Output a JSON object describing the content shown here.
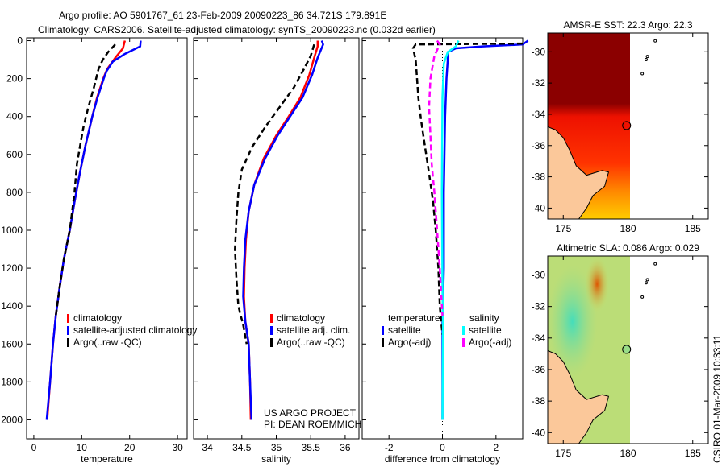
{
  "title_line1": "Argo profile: AO 5901767_61 23-Feb-2009 20090223_86 34.721S 179.891E",
  "title_line2": "Climatology: CARS2006. Satellite-adjusted climatology: synTS_20090223.nc (0.032d earlier)",
  "side_label": "CSIRO 01-Mar-2009 10:33:11",
  "project_label_1": "US ARGO PROJECT",
  "project_label_2": "PI: DEAN ROEMMICH",
  "colors": {
    "climatology": "#ff0000",
    "satellite_temp": "#0000ff",
    "argo": "#000000",
    "satellite_sal": "#00ffff",
    "argo_sal": "#ff00ff"
  },
  "chart_data": [
    {
      "type": "line",
      "name": "temperature",
      "xlabel": "temperature",
      "ylabel": "",
      "xlim": [
        -1.5,
        32
      ],
      "ylim": [
        2100,
        -15
      ],
      "xticks": [
        0,
        10,
        20,
        30
      ],
      "yticks": [
        0,
        200,
        400,
        600,
        800,
        1000,
        1200,
        1400,
        1600,
        1800,
        2000
      ],
      "legend": [
        "climatology",
        "satellite-adjusted climatology",
        "Argo(..raw -QC)"
      ],
      "series": [
        {
          "name": "climatology",
          "color": "#ff0000",
          "dash": false,
          "points": [
            [
              19,
              0
            ],
            [
              18.6,
              40
            ],
            [
              17,
              90
            ],
            [
              15.3,
              150
            ],
            [
              14.5,
              200
            ],
            [
              13.2,
              300
            ],
            [
              12.2,
              400
            ],
            [
              10.8,
              550
            ],
            [
              9.6,
              700
            ],
            [
              8.5,
              850
            ],
            [
              7.5,
              1000
            ],
            [
              6.3,
              1150
            ],
            [
              5.4,
              1300
            ],
            [
              4.6,
              1450
            ],
            [
              4,
              1600
            ],
            [
              3.4,
              1800
            ],
            [
              2.8,
              2000
            ]
          ]
        },
        {
          "name": "satellite-adjusted climatology",
          "color": "#0000ff",
          "dash": false,
          "points": [
            [
              22.3,
              0
            ],
            [
              22.2,
              30
            ],
            [
              19,
              70
            ],
            [
              16.5,
              110
            ],
            [
              15.2,
              160
            ],
            [
              14.6,
              200
            ],
            [
              13.3,
              300
            ],
            [
              12.2,
              400
            ],
            [
              10.8,
              550
            ],
            [
              9.6,
              700
            ],
            [
              8.5,
              850
            ],
            [
              7.5,
              1000
            ],
            [
              6.3,
              1150
            ],
            [
              5.4,
              1300
            ],
            [
              4.6,
              1450
            ],
            [
              4,
              1600
            ],
            [
              3.4,
              1800
            ],
            [
              2.7,
              2000
            ]
          ]
        },
        {
          "name": "Argo(..raw -QC)",
          "color": "#000000",
          "dash": true,
          "points": [
            [
              17,
              20
            ],
            [
              15.5,
              60
            ],
            [
              14.4,
              100
            ],
            [
              13.5,
              150
            ],
            [
              12.5,
              250
            ],
            [
              11.4,
              350
            ],
            [
              10.4,
              450
            ],
            [
              9.7,
              550
            ],
            [
              9,
              650
            ],
            [
              8.5,
              800
            ],
            [
              7.5,
              1000
            ],
            [
              6.3,
              1150
            ],
            [
              5.4,
              1300
            ],
            [
              4.6,
              1450
            ]
          ]
        }
      ]
    },
    {
      "type": "line",
      "name": "salinity",
      "xlabel": "salinity",
      "ylabel": "",
      "xlim": [
        33.8,
        36.2
      ],
      "ylim": [
        2100,
        -15
      ],
      "xticks": [
        34,
        34.5,
        35,
        35.5,
        36
      ],
      "legend": [
        "climatology",
        "satellite adj. clim.",
        "Argo(..raw -QC)"
      ],
      "series": [
        {
          "name": "climatology",
          "color": "#ff0000",
          "dash": false,
          "points": [
            [
              35.6,
              0
            ],
            [
              35.6,
              30
            ],
            [
              35.55,
              90
            ],
            [
              35.48,
              180
            ],
            [
              35.35,
              300
            ],
            [
              35.18,
              400
            ],
            [
              35.0,
              500
            ],
            [
              34.82,
              620
            ],
            [
              34.68,
              760
            ],
            [
              34.6,
              900
            ],
            [
              34.56,
              1050
            ],
            [
              34.54,
              1200
            ],
            [
              34.53,
              1350
            ],
            [
              34.55,
              1480
            ],
            [
              34.6,
              1600
            ],
            [
              34.62,
              1800
            ],
            [
              34.63,
              2000
            ]
          ]
        },
        {
          "name": "satellite adj. clim.",
          "color": "#0000ff",
          "dash": false,
          "points": [
            [
              35.66,
              0
            ],
            [
              35.68,
              20
            ],
            [
              35.6,
              90
            ],
            [
              35.52,
              180
            ],
            [
              35.38,
              300
            ],
            [
              35.2,
              400
            ],
            [
              35.02,
              500
            ],
            [
              34.84,
              620
            ],
            [
              34.68,
              760
            ],
            [
              34.6,
              900
            ],
            [
              34.55,
              1050
            ],
            [
              34.53,
              1200
            ],
            [
              34.52,
              1350
            ],
            [
              34.55,
              1480
            ],
            [
              34.6,
              1600
            ],
            [
              34.62,
              1800
            ],
            [
              34.64,
              2000
            ]
          ]
        },
        {
          "name": "Argo(..raw -QC)",
          "color": "#000000",
          "dash": true,
          "points": [
            [
              35.55,
              20
            ],
            [
              35.5,
              80
            ],
            [
              35.4,
              150
            ],
            [
              35.25,
              250
            ],
            [
              35.05,
              350
            ],
            [
              34.85,
              450
            ],
            [
              34.65,
              560
            ],
            [
              34.5,
              680
            ],
            [
              34.45,
              800
            ],
            [
              34.42,
              950
            ],
            [
              34.4,
              1100
            ],
            [
              34.42,
              1250
            ],
            [
              34.45,
              1400
            ],
            [
              34.52,
              1500
            ],
            [
              34.57,
              1600
            ]
          ]
        }
      ]
    },
    {
      "type": "line",
      "name": "difference",
      "xlabel": "difference from climatology",
      "ylabel": "",
      "xlim": [
        -3,
        3
      ],
      "ylim": [
        2100,
        -15
      ],
      "xticks": [
        -2,
        0,
        2
      ],
      "legend_headers": [
        "temperature",
        "salinity"
      ],
      "legend": [
        "satellite",
        "Argo(-adj)",
        "satellite",
        "Argo(-adj)"
      ],
      "series": [
        {
          "name": "temperature satellite",
          "color": "#0000ff",
          "dash": false,
          "points": [
            [
              3.2,
              0
            ],
            [
              3,
              20
            ],
            [
              1.5,
              30
            ],
            [
              0.5,
              40
            ],
            [
              0.2,
              60
            ],
            [
              0.2,
              100
            ],
            [
              0.15,
              200
            ],
            [
              0.1,
              400
            ],
            [
              0.05,
              800
            ],
            [
              0.05,
              1200
            ],
            [
              0,
              1500
            ],
            [
              0,
              2000
            ]
          ]
        },
        {
          "name": "temperature Argo(-adj)",
          "color": "#000000",
          "dash": true,
          "points": [
            [
              3,
              15
            ],
            [
              -1,
              20
            ],
            [
              -1.1,
              40
            ],
            [
              -1,
              100
            ],
            [
              -0.95,
              200
            ],
            [
              -0.9,
              300
            ],
            [
              -0.8,
              420
            ],
            [
              -0.65,
              560
            ],
            [
              -0.5,
              700
            ],
            [
              -0.35,
              850
            ],
            [
              -0.25,
              1000
            ],
            [
              -0.15,
              1200
            ],
            [
              -0.1,
              1400
            ],
            [
              0,
              1550
            ]
          ]
        },
        {
          "name": "salinity satellite",
          "color": "#00ffff",
          "dash": false,
          "points": [
            [
              0.6,
              0
            ],
            [
              0.5,
              30
            ],
            [
              0.2,
              60
            ],
            [
              0.05,
              120
            ],
            [
              0,
              300
            ],
            [
              -0.02,
              800
            ],
            [
              0,
              1300
            ],
            [
              0.02,
              1500
            ],
            [
              0,
              2000
            ]
          ]
        },
        {
          "name": "salinity Argo(-adj)",
          "color": "#ff00ff",
          "dash": true,
          "points": [
            [
              -0.2,
              0
            ],
            [
              -0.1,
              20
            ],
            [
              -0.3,
              80
            ],
            [
              -0.45,
              200
            ],
            [
              -0.5,
              350
            ],
            [
              -0.45,
              500
            ],
            [
              -0.4,
              650
            ],
            [
              -0.3,
              800
            ],
            [
              -0.2,
              1000
            ],
            [
              -0.1,
              1200
            ],
            [
              0,
              1450
            ]
          ]
        }
      ]
    },
    {
      "type": "heatmap",
      "name": "sst-map",
      "title": "AMSR-E SST: 22.3 Argo: 22.3",
      "xticks": [
        175,
        180,
        185
      ],
      "yticks": [
        -30,
        -32,
        -34,
        -36,
        -38,
        -40
      ],
      "xlim": [
        173.8,
        186.2
      ],
      "ylim": [
        -40.7,
        -28.8
      ],
      "marker": [
        179.891,
        -34.721
      ]
    },
    {
      "type": "heatmap",
      "name": "sla-map",
      "title": "Altimetric SLA: 0.086 Argo: 0.029",
      "xticks": [
        175,
        180,
        185
      ],
      "yticks": [
        -30,
        -32,
        -34,
        -36,
        -38,
        -40
      ],
      "xlim": [
        173.8,
        186.2
      ],
      "ylim": [
        -40.7,
        -28.8
      ],
      "marker": [
        179.891,
        -34.721
      ]
    }
  ]
}
